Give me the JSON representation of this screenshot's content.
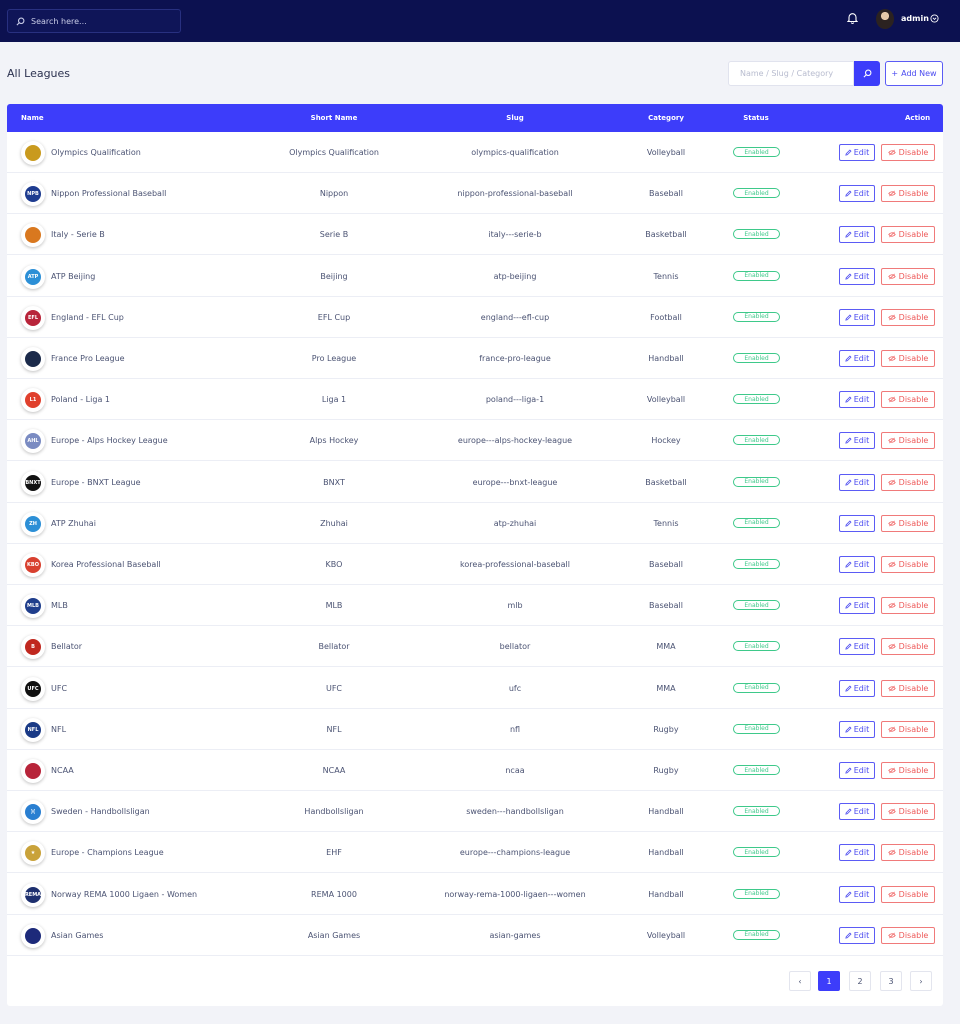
{
  "topbar": {
    "search_placeholder": "Search here...",
    "user_name": "admin",
    "icons": {
      "search": "search-icon",
      "bell": "bell-icon",
      "caret": "chevron-down-circle-icon"
    }
  },
  "page": {
    "title": "All Leagues",
    "filter_placeholder": "Name / Slug / Category",
    "add_label": "Add New"
  },
  "colors": {
    "accent": "#3d3dfa",
    "topbar": "#0c1150",
    "enabled": "#3ec98a",
    "disable": "#ee5a5a"
  },
  "table": {
    "columns": {
      "name": "Name",
      "short_name": "Short Name",
      "slug": "Slug",
      "category": "Category",
      "status": "Status",
      "action": "Action"
    },
    "edit_label": "Edit",
    "disable_label": "Disable",
    "rows": [
      {
        "name": "Olympics Qualification",
        "short_name": "Olympics Qualification",
        "slug": "olympics-qualification",
        "category": "Volleyball",
        "status": "Enabled",
        "logo": "olympic-rings-icon",
        "logo_text": "",
        "logo_color": "#c99a1e"
      },
      {
        "name": "Nippon Professional Baseball",
        "short_name": "Nippon",
        "slug": "nippon-professional-baseball",
        "category": "Baseball",
        "status": "Enabled",
        "logo": "npb-logo-icon",
        "logo_text": "NPB",
        "logo_color": "#1d3b8f"
      },
      {
        "name": "Italy - Serie B",
        "short_name": "Serie B",
        "slug": "italy---serie-b",
        "category": "Basketball",
        "status": "Enabled",
        "logo": "basketball-icon",
        "logo_text": "",
        "logo_color": "#d9781f"
      },
      {
        "name": "ATP Beijing",
        "short_name": "Beijing",
        "slug": "atp-beijing",
        "category": "Tennis",
        "status": "Enabled",
        "logo": "atp-logo-icon",
        "logo_text": "ATP",
        "logo_color": "#2c8fd6"
      },
      {
        "name": "England - EFL Cup",
        "short_name": "EFL Cup",
        "slug": "england---efl-cup",
        "category": "Football",
        "status": "Enabled",
        "logo": "efl-cup-icon",
        "logo_text": "EFL",
        "logo_color": "#b8243a"
      },
      {
        "name": "France Pro League",
        "short_name": "Pro League",
        "slug": "france-pro-league",
        "category": "Handball",
        "status": "Enabled",
        "logo": "handball-ball-icon",
        "logo_text": "",
        "logo_color": "#1b2a4a"
      },
      {
        "name": "Poland - Liga 1",
        "short_name": "Liga 1",
        "slug": "poland---liga-1",
        "category": "Volleyball",
        "status": "Enabled",
        "logo": "liga-1-icon",
        "logo_text": "L1",
        "logo_color": "#e0402d"
      },
      {
        "name": "Europe - Alps Hockey League",
        "short_name": "Alps Hockey",
        "slug": "europe---alps-hockey-league",
        "category": "Hockey",
        "status": "Enabled",
        "logo": "alps-hockey-icon",
        "logo_text": "AHL",
        "logo_color": "#7a8bc2"
      },
      {
        "name": "Europe - BNXT League",
        "short_name": "BNXT",
        "slug": "europe---bnxt-league",
        "category": "Basketball",
        "status": "Enabled",
        "logo": "bnxt-logo-icon",
        "logo_text": "BNXT",
        "logo_color": "#111111"
      },
      {
        "name": "ATP Zhuhai",
        "short_name": "Zhuhai",
        "slug": "atp-zhuhai",
        "category": "Tennis",
        "status": "Enabled",
        "logo": "atp-zhuhai-icon",
        "logo_text": "ZH",
        "logo_color": "#2c8fd6"
      },
      {
        "name": "Korea Professional Baseball",
        "short_name": "KBO",
        "slug": "korea-professional-baseball",
        "category": "Baseball",
        "status": "Enabled",
        "logo": "kbo-logo-icon",
        "logo_text": "KBO",
        "logo_color": "#d8402f"
      },
      {
        "name": "MLB",
        "short_name": "MLB",
        "slug": "mlb",
        "category": "Baseball",
        "status": "Enabled",
        "logo": "mlb-logo-icon",
        "logo_text": "MLB",
        "logo_color": "#1f3e8c"
      },
      {
        "name": "Bellator",
        "short_name": "Bellator",
        "slug": "bellator",
        "category": "MMA",
        "status": "Enabled",
        "logo": "bellator-logo-icon",
        "logo_text": "B",
        "logo_color": "#c0281f"
      },
      {
        "name": "UFC",
        "short_name": "UFC",
        "slug": "ufc",
        "category": "MMA",
        "status": "Enabled",
        "logo": "ufc-logo-icon",
        "logo_text": "UFC",
        "logo_color": "#111111"
      },
      {
        "name": "NFL",
        "short_name": "NFL",
        "slug": "nfl",
        "category": "Rugby",
        "status": "Enabled",
        "logo": "nfl-shield-icon",
        "logo_text": "NFL",
        "logo_color": "#1a3a86"
      },
      {
        "name": "NCAA",
        "short_name": "NCAA",
        "slug": "ncaa",
        "category": "Rugby",
        "status": "Enabled",
        "logo": "ncaa-flag-icon",
        "logo_text": "",
        "logo_color": "#b8243a"
      },
      {
        "name": "Sweden - Handbollsligan",
        "short_name": "Handbollsligan",
        "slug": "sweden---handbollsligan",
        "category": "Handball",
        "status": "Enabled",
        "logo": "handbollsligan-icon",
        "logo_text": ")(",
        "logo_color": "#2a7fd1"
      },
      {
        "name": "Europe - Champions League",
        "short_name": "EHF",
        "slug": "europe---champions-league",
        "category": "Handball",
        "status": "Enabled",
        "logo": "ehf-star-icon",
        "logo_text": "★",
        "logo_color": "#c9a23a"
      },
      {
        "name": "Norway REMA 1000 Ligaen - Women",
        "short_name": "REMA 1000",
        "slug": "norway-rema-1000-ligaen---women",
        "category": "Handball",
        "status": "Enabled",
        "logo": "rema-1000-icon",
        "logo_text": "REMA",
        "logo_color": "#1d2f6e"
      },
      {
        "name": "Asian Games",
        "short_name": "Asian Games",
        "slug": "asian-games",
        "category": "Volleyball",
        "status": "Enabled",
        "logo": "asian-games-icon",
        "logo_text": "",
        "logo_color": "#1d2a7a"
      }
    ]
  },
  "pagination": {
    "prev": "‹",
    "pages": [
      "1",
      "2",
      "3"
    ],
    "active": "1",
    "next": "›"
  }
}
